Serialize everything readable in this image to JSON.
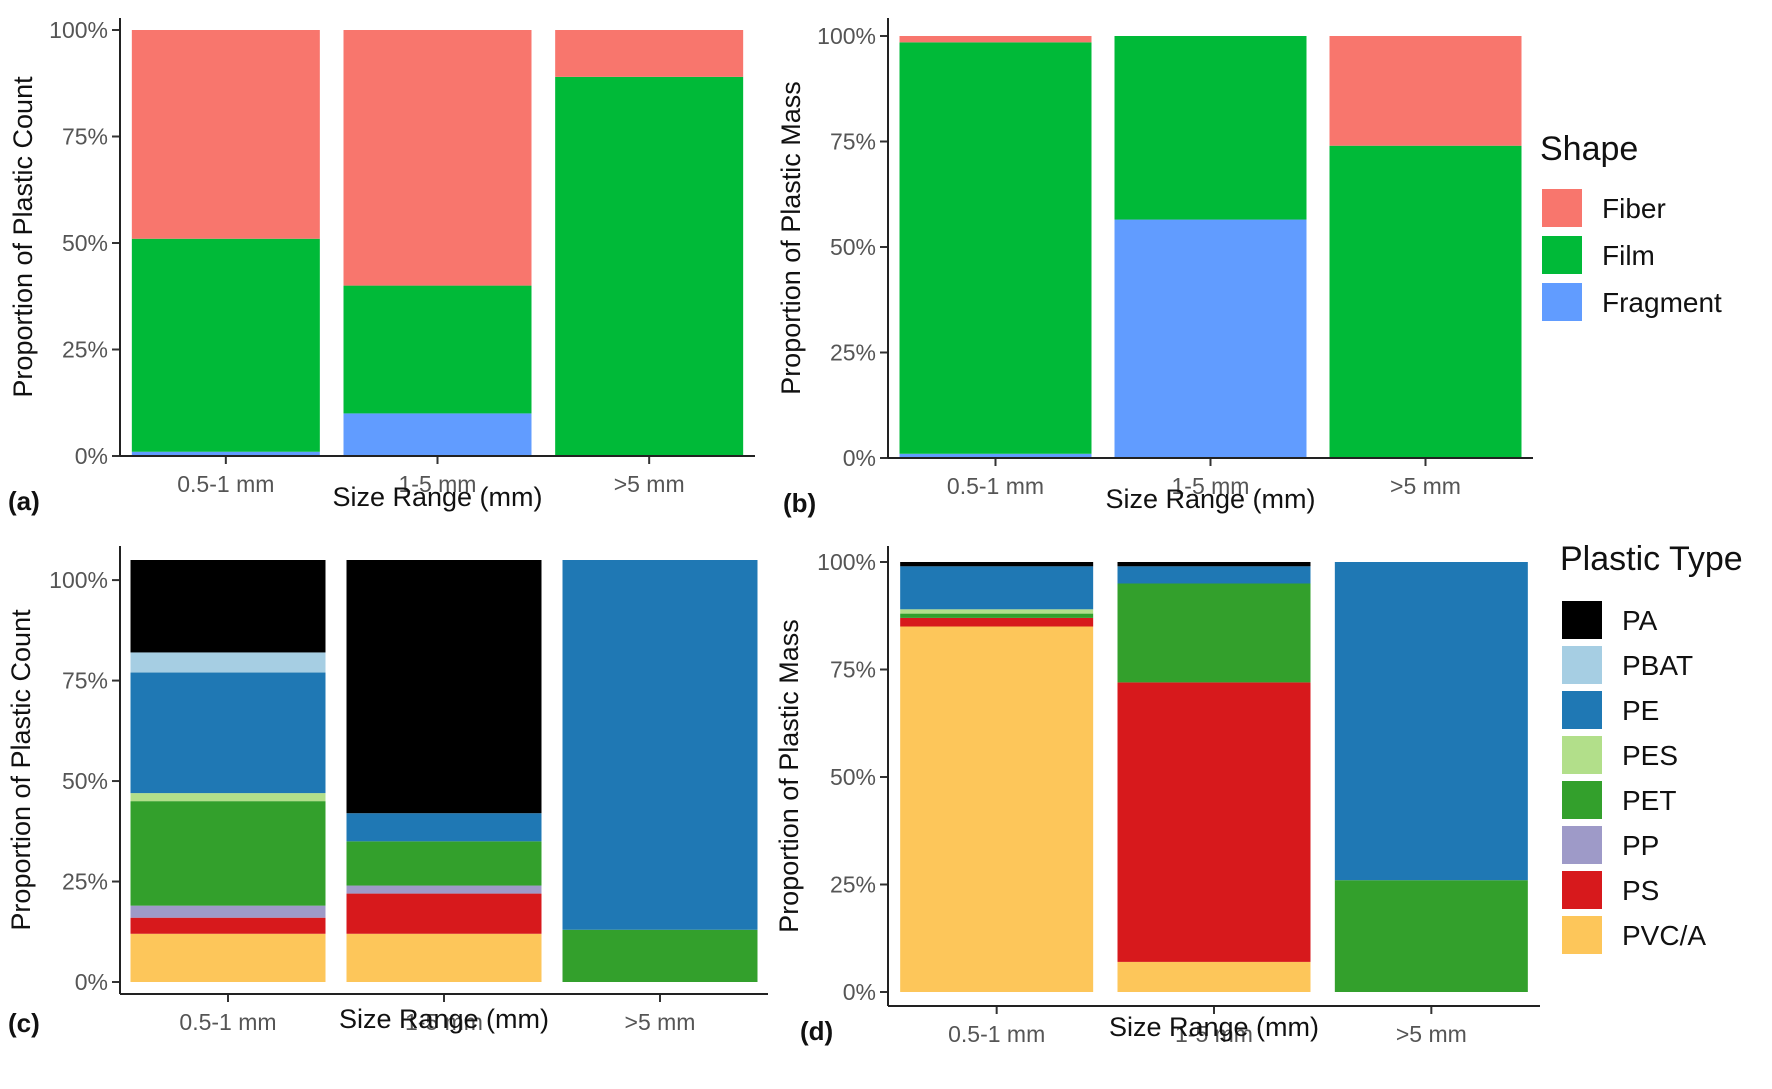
{
  "chart_data": [
    {
      "id": "a",
      "type": "bar",
      "stacked": true,
      "panel_label": "(a)",
      "xlabel": "Size Range (mm)",
      "ylabel": "Proportion of Plastic Count",
      "categories": [
        "0.5-1 mm",
        "1-5 mm",
        ">5 mm"
      ],
      "yticks": [
        "0%",
        "25%",
        "50%",
        "75%",
        "100%"
      ],
      "ylim": [
        0,
        1
      ],
      "series": [
        {
          "name": "Fragment",
          "color": "#619CFF",
          "values": [
            0.01,
            0.1,
            0.0
          ]
        },
        {
          "name": "Film",
          "color": "#00BA38",
          "values": [
            0.5,
            0.3,
            0.89
          ]
        },
        {
          "name": "Fiber",
          "color": "#F8766D",
          "values": [
            0.49,
            0.6,
            0.11
          ]
        }
      ]
    },
    {
      "id": "b",
      "type": "bar",
      "stacked": true,
      "panel_label": "(b)",
      "xlabel": "Size Range (mm)",
      "ylabel": "Proportion of Plastic Mass",
      "categories": [
        "0.5-1 mm",
        "1-5 mm",
        ">5 mm"
      ],
      "yticks": [
        "0%",
        "25%",
        "50%",
        "75%",
        "100%"
      ],
      "ylim": [
        0,
        1
      ],
      "series": [
        {
          "name": "Fragment",
          "color": "#619CFF",
          "values": [
            0.01,
            0.565,
            0.0
          ]
        },
        {
          "name": "Film",
          "color": "#00BA38",
          "values": [
            0.975,
            0.435,
            0.74
          ]
        },
        {
          "name": "Fiber",
          "color": "#F8766D",
          "values": [
            0.015,
            0.0,
            0.26
          ]
        }
      ]
    },
    {
      "id": "c",
      "type": "bar",
      "stacked": true,
      "panel_label": "(c)",
      "xlabel": "Size Range (mm)",
      "ylabel": "Proportion of Plastic Count",
      "categories": [
        "0.5-1 mm",
        "1-5 mm",
        ">5 mm"
      ],
      "yticks": [
        "0%",
        "25%",
        "50%",
        "75%",
        "100%"
      ],
      "ylim": [
        0,
        1.05
      ],
      "series": [
        {
          "name": "PVC/A",
          "color": "#FDC65A",
          "values": [
            0.12,
            0.12,
            0.0
          ]
        },
        {
          "name": "PS",
          "color": "#D7191C",
          "values": [
            0.04,
            0.1,
            0.0
          ]
        },
        {
          "name": "PP",
          "color": "#9E9AC8",
          "values": [
            0.03,
            0.02,
            0.0
          ]
        },
        {
          "name": "PET",
          "color": "#33A02C",
          "values": [
            0.26,
            0.11,
            0.13
          ]
        },
        {
          "name": "PES",
          "color": "#B2DF8A",
          "values": [
            0.02,
            0.0,
            0.0
          ]
        },
        {
          "name": "PE",
          "color": "#1F78B4",
          "values": [
            0.3,
            0.07,
            0.92
          ]
        },
        {
          "name": "PBAT",
          "color": "#A6CEE3",
          "values": [
            0.05,
            0.0,
            0.0
          ]
        },
        {
          "name": "PA",
          "color": "#000000",
          "values": [
            0.23,
            0.63,
            0.0
          ]
        }
      ]
    },
    {
      "id": "d",
      "type": "bar",
      "stacked": true,
      "panel_label": "(d)",
      "xlabel": "Size Range (mm)",
      "ylabel": "Proportion of Plastic Mass",
      "categories": [
        "0.5-1 mm",
        "1-5 mm",
        ">5 mm"
      ],
      "yticks": [
        "0%",
        "25%",
        "50%",
        "75%",
        "100%"
      ],
      "ylim": [
        0,
        1
      ],
      "series": [
        {
          "name": "PVC/A",
          "color": "#FDC65A",
          "values": [
            0.85,
            0.07,
            0.0
          ]
        },
        {
          "name": "PS",
          "color": "#D7191C",
          "values": [
            0.02,
            0.65,
            0.0
          ]
        },
        {
          "name": "PP",
          "color": "#9E9AC8",
          "values": [
            0.0,
            0.0,
            0.0
          ]
        },
        {
          "name": "PET",
          "color": "#33A02C",
          "values": [
            0.01,
            0.23,
            0.26
          ]
        },
        {
          "name": "PES",
          "color": "#B2DF8A",
          "values": [
            0.01,
            0.0,
            0.0
          ]
        },
        {
          "name": "PE",
          "color": "#1F78B4",
          "values": [
            0.1,
            0.04,
            0.74
          ]
        },
        {
          "name": "PBAT",
          "color": "#A6CEE3",
          "values": [
            0.0,
            0.0,
            0.0
          ]
        },
        {
          "name": "PA",
          "color": "#000000",
          "values": [
            0.01,
            0.01,
            0.0
          ]
        }
      ]
    }
  ],
  "legends": {
    "shape": {
      "title": "Shape",
      "items": [
        {
          "label": "Fiber",
          "color": "#F8766D"
        },
        {
          "label": "Film",
          "color": "#00BA38"
        },
        {
          "label": "Fragment",
          "color": "#619CFF"
        }
      ]
    },
    "plastic_type": {
      "title": "Plastic Type",
      "items": [
        {
          "label": "PA",
          "color": "#000000"
        },
        {
          "label": "PBAT",
          "color": "#A6CEE3"
        },
        {
          "label": "PE",
          "color": "#1F78B4"
        },
        {
          "label": "PES",
          "color": "#B2DF8A"
        },
        {
          "label": "PET",
          "color": "#33A02C"
        },
        {
          "label": "PP",
          "color": "#9E9AC8"
        },
        {
          "label": "PS",
          "color": "#D7191C"
        },
        {
          "label": "PVC/A",
          "color": "#FDC65A"
        }
      ]
    }
  }
}
